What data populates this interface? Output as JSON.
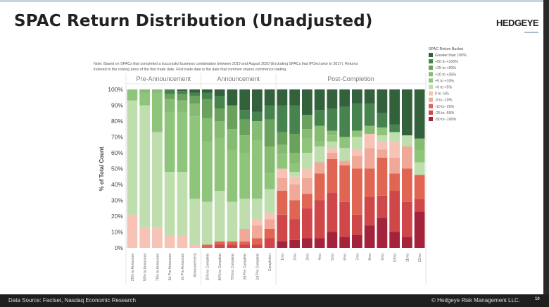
{
  "slide": {
    "title": "SPAC Return Distribution (Unadjusted)",
    "logo": "HEDGEYE",
    "footer_source": "Data Source: Factset, Nasdaq Economic Research",
    "footer_copyright": "© Hedgeye Risk Management LLC.",
    "page_number": "10"
  },
  "chart_data": {
    "type": "bar",
    "stacked": true,
    "note_line1": "Note: Based on SPACs that completed a successful business combination between 2019 and August 2020 (Excluding SPACs that IPOed prior to 2017). Returns",
    "note_line2": "indexed to the closing price of the first trade date. First trade date is the date that common shares commence trading.",
    "ylabel": "% of Total Count",
    "ylim": [
      0,
      100
    ],
    "yticks": [
      "0%",
      "10%",
      "20%",
      "30%",
      "40%",
      "50%",
      "60%",
      "70%",
      "80%",
      "90%",
      "100%"
    ],
    "groups": [
      {
        "label": "Pre-Announcement",
        "count": 6
      },
      {
        "label": "Announcement",
        "count": 6
      },
      {
        "label": "Post-Completion",
        "count": 12
      }
    ],
    "categories": [
      "25% to Announce",
      "50% to Announce",
      "75% to Announce",
      "2d Pre Announce",
      "1d Pre Announce",
      "Announcement",
      "25% to Complete",
      "50% to Complete",
      "75% to Complete",
      "2d Pre Complete",
      "1d Pre Complete",
      "Completion",
      "1mo",
      "2mo",
      "3mo",
      "4mo",
      "5mo",
      "6mo",
      "7mo",
      "8mo",
      "9mo",
      "10mo",
      "11mo",
      "12mo"
    ],
    "legend_title": "SPAC Return Bucket",
    "legend_placement": "right",
    "series": [
      {
        "name": "-50 to -100%",
        "color": "#a3233b",
        "values": [
          0,
          0,
          0,
          0,
          0,
          0,
          0,
          0,
          0,
          0,
          0,
          0,
          4,
          5,
          6,
          6,
          10,
          7,
          8,
          14,
          19,
          10,
          7,
          23
        ]
      },
      {
        "name": "-25 to -50%",
        "color": "#d0474a",
        "values": [
          0,
          0,
          0,
          0,
          0,
          0,
          0,
          2,
          2,
          2,
          2,
          6,
          17,
          13,
          19,
          24,
          25,
          22,
          13,
          18,
          14,
          26,
          22,
          8
        ]
      },
      {
        "name": "-10 to -25%",
        "color": "#e06553",
        "values": [
          0,
          0,
          0,
          0,
          0,
          0,
          2,
          2,
          2,
          2,
          4,
          6,
          15,
          12,
          9,
          17,
          21,
          23,
          29,
          18,
          24,
          11,
          21,
          15
        ]
      },
      {
        "name": "-5 to -10%",
        "color": "#f0a898",
        "values": [
          0,
          0,
          0,
          0,
          0,
          0,
          0,
          0,
          0,
          8,
          8,
          6,
          8,
          10,
          10,
          7,
          4,
          3,
          8,
          13,
          5,
          10,
          14,
          0
        ]
      },
      {
        "name": "0 to -5%",
        "color": "#f6c3b6",
        "values": [
          21,
          13,
          13,
          8,
          8,
          2,
          0,
          0,
          0,
          0,
          4,
          4,
          6,
          5,
          6,
          0,
          3,
          0,
          4,
          9,
          5,
          10,
          0,
          0
        ]
      },
      {
        "name": "+0 to +5%",
        "color": "#bedfad",
        "values": [
          72,
          77,
          60,
          40,
          40,
          29,
          27,
          32,
          25,
          19,
          13,
          15,
          0,
          3,
          10,
          10,
          4,
          8,
          8,
          0,
          4,
          6,
          7,
          8
        ]
      },
      {
        "name": "+5 to +10%",
        "color": "#8fc47b",
        "values": [
          7,
          8,
          25,
          38,
          38,
          52,
          38,
          33,
          33,
          29,
          37,
          10,
          9,
          5,
          9,
          3,
          4,
          7,
          4,
          0,
          5,
          0,
          0,
          8
        ]
      },
      {
        "name": "+10 to +25%",
        "color": "#86bb72",
        "values": [
          0,
          2,
          2,
          8,
          7,
          8,
          15,
          11,
          13,
          11,
          12,
          17,
          6,
          7,
          6,
          10,
          3,
          0,
          0,
          5,
          0,
          0,
          0,
          7
        ]
      },
      {
        "name": "+25 to +50%",
        "color": "#6aa15c",
        "values": [
          0,
          0,
          0,
          3,
          4,
          5,
          12,
          8,
          15,
          10,
          0,
          17,
          8,
          12,
          9,
          0,
          0,
          0,
          0,
          0,
          0,
          0,
          0,
          0
        ]
      },
      {
        "name": "+50 to +100%",
        "color": "#47834e",
        "values": [
          0,
          0,
          0,
          3,
          2,
          2,
          4,
          8,
          0,
          6,
          6,
          9,
          17,
          18,
          0,
          10,
          14,
          19,
          17,
          14,
          9,
          5,
          0,
          0
        ]
      },
      {
        "name": "Greater than 100%",
        "color": "#33613c",
        "values": [
          0,
          0,
          0,
          0,
          1,
          2,
          2,
          4,
          10,
          13,
          14,
          10,
          10,
          10,
          16,
          13,
          12,
          11,
          9,
          9,
          15,
          22,
          29,
          31
        ]
      }
    ]
  }
}
